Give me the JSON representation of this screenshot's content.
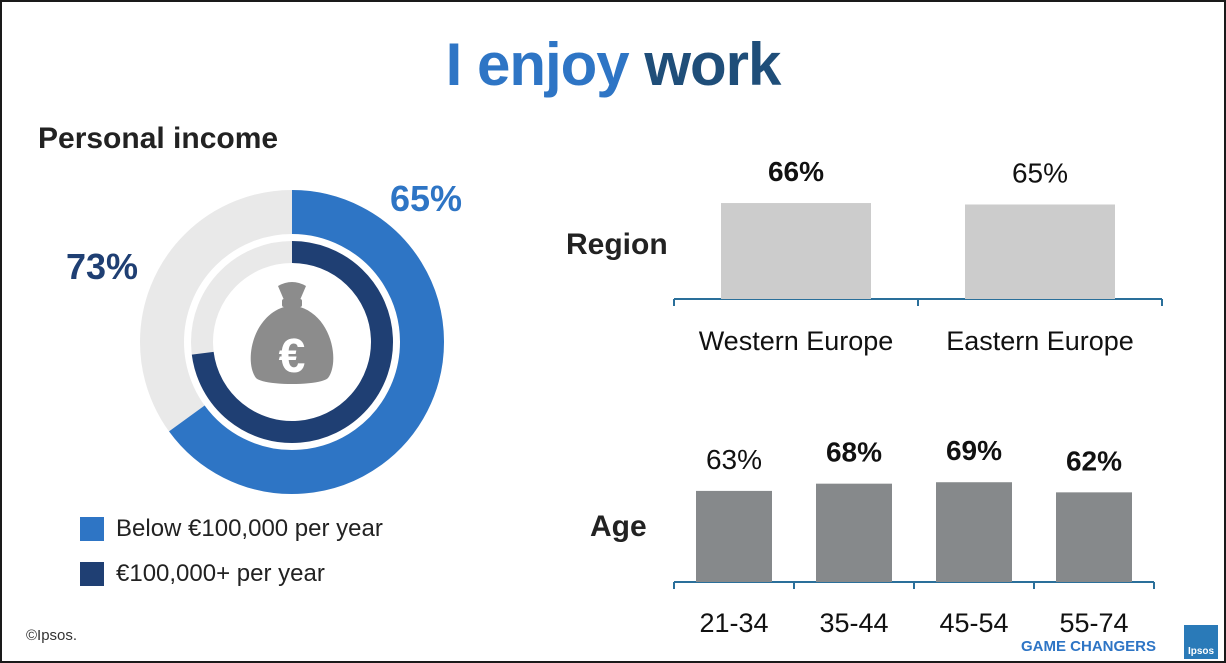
{
  "title": {
    "part1": "I enjoy",
    "part2": "work"
  },
  "income_heading": "Personal income",
  "legend": [
    {
      "label": "Below €100,000 per year",
      "color": "#2e75c5"
    },
    {
      "label": "€100,000+ per year",
      "color": "#1f3f73"
    }
  ],
  "region_label": "Region",
  "age_label": "Age",
  "copyright": "©Ipsos.",
  "footer_brand": "GAME CHANGERS",
  "logo_text": "Ipsos",
  "icon": "euro-money-bag-icon",
  "colors": {
    "outer_ring": "#2e75c5",
    "inner_ring": "#1f3f73",
    "ring_track": "#e9e9e9",
    "region_bars": "#cccccc",
    "age_bars": "#86898b",
    "axis": "#2a6f9a",
    "icon": "#8c8c8c"
  },
  "chart_data": [
    {
      "type": "pie",
      "subtype": "concentric-donut",
      "title": "Personal income",
      "series": [
        {
          "name": "Below €100,000 per year",
          "value": 65,
          "label": "65%"
        },
        {
          "name": "€100,000+ per year",
          "value": 73,
          "label": "73%"
        }
      ],
      "max": 100
    },
    {
      "type": "bar",
      "title": "Region",
      "categories": [
        "Western Europe",
        "Eastern Europe"
      ],
      "values": [
        66,
        65
      ],
      "labels": [
        "66%",
        "65%"
      ],
      "bold": [
        true,
        false
      ],
      "ylim": [
        0,
        100
      ]
    },
    {
      "type": "bar",
      "title": "Age",
      "categories": [
        "21-34",
        "35-44",
        "45-54",
        "55-74"
      ],
      "values": [
        63,
        68,
        69,
        62
      ],
      "labels": [
        "63%",
        "68%",
        "69%",
        "62%"
      ],
      "bold": [
        false,
        true,
        true,
        true
      ],
      "ylim": [
        0,
        100
      ]
    }
  ]
}
